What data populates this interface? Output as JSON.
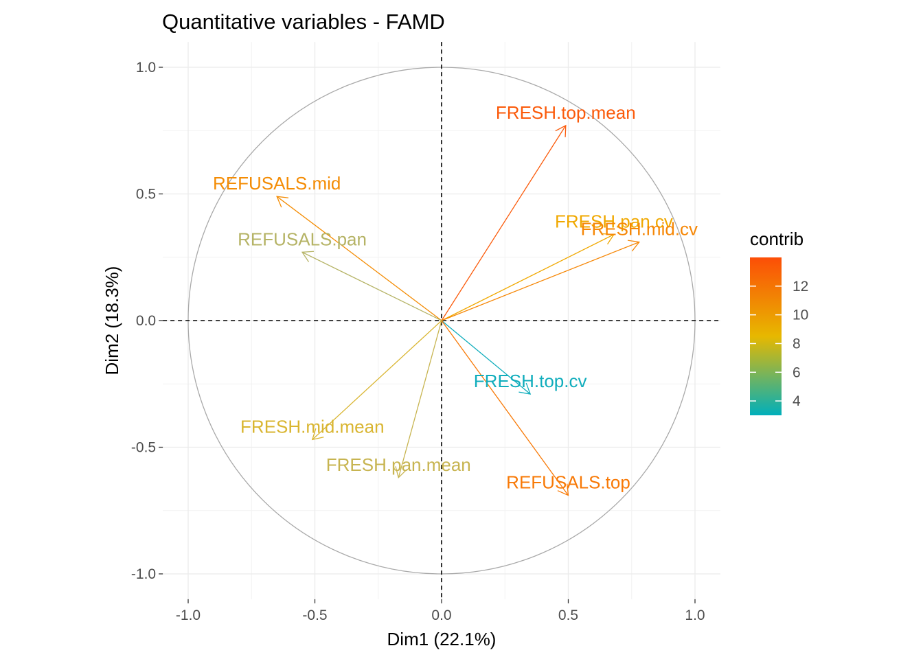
{
  "chart_data": {
    "type": "scatter",
    "subtype": "correlation-circle-arrows",
    "title": "Quantitative variables - FAMD",
    "xlabel": "Dim1 (22.1%)",
    "ylabel": "Dim2 (18.3%)",
    "xlim": [
      -1.1,
      1.1
    ],
    "ylim": [
      -1.1,
      1.1
    ],
    "x_ticks": [
      -1.0,
      -0.5,
      0.0,
      0.5,
      1.0
    ],
    "x_tick_labels": [
      "-1.0",
      "-0.5",
      "0.0",
      "0.5",
      "1.0"
    ],
    "y_ticks": [
      -1.0,
      -0.5,
      0.0,
      0.5,
      1.0
    ],
    "y_tick_labels": [
      "-1.0",
      "-0.5",
      "0.0",
      "0.5",
      "1.0"
    ],
    "grid": true,
    "unit_circle": true,
    "reference_lines": {
      "x": 0,
      "y": 0,
      "style": "dashed"
    },
    "variables": [
      {
        "name": "FRESH.top.mean",
        "x": 0.49,
        "y": 0.77,
        "contrib": 14.0,
        "color": "#fb5a0a"
      },
      {
        "name": "REFUSALS.mid",
        "x": -0.65,
        "y": 0.49,
        "contrib": 11.5,
        "color": "#f48c04"
      },
      {
        "name": "FRESH.pan.cv",
        "x": 0.68,
        "y": 0.34,
        "contrib": 9.0,
        "color": "#f0a800"
      },
      {
        "name": "FRESH.mid.cv",
        "x": 0.78,
        "y": 0.31,
        "contrib": 11.6,
        "color": "#f68706"
      },
      {
        "name": "REFUSALS.pan",
        "x": -0.55,
        "y": 0.27,
        "contrib": 6.4,
        "color": "#b5b365"
      },
      {
        "name": "FRESH.top.cv",
        "x": 0.35,
        "y": -0.29,
        "contrib": 3.2,
        "color": "#10adbc"
      },
      {
        "name": "FRESH.mid.mean",
        "x": -0.51,
        "y": -0.47,
        "contrib": 7.8,
        "color": "#d9b530"
      },
      {
        "name": "FRESH.pan.mean",
        "x": -0.17,
        "y": -0.62,
        "contrib": 7.0,
        "color": "#c7b450"
      },
      {
        "name": "REFUSALS.top",
        "x": 0.5,
        "y": -0.69,
        "contrib": 12.4,
        "color": "#f87906"
      }
    ],
    "legend": {
      "title": "contrib",
      "position": "right",
      "range": [
        3,
        14
      ],
      "ticks": [
        4,
        6,
        8,
        10,
        12
      ],
      "tick_labels": [
        "4",
        "6",
        "8",
        "10",
        "12"
      ],
      "gradient_colors": [
        "#00afbb",
        "#e7b800",
        "#fc4e07"
      ]
    }
  }
}
